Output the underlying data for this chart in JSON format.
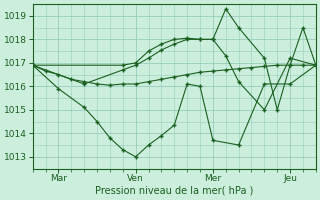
{
  "background_color": "#cceedd",
  "grid_color": "#99ccbb",
  "line_color": "#1a6020",
  "marker_color": "#1a6020",
  "xlabel": "Pression niveau de la mer( hPa )",
  "ylim": [
    1012.5,
    1019.5
  ],
  "yticks": [
    1013,
    1014,
    1015,
    1016,
    1017,
    1018,
    1019
  ],
  "xtick_labels": [
    "Mar",
    "Ven",
    "Mer",
    "Jeu"
  ],
  "xtick_positions": [
    24,
    96,
    168,
    240
  ],
  "xlim": [
    0,
    264
  ],
  "num_minor_x": 264,
  "series1_x": [
    0,
    12,
    24,
    36,
    48,
    60,
    72,
    84,
    96,
    108,
    120,
    132,
    144,
    156,
    168,
    180,
    192,
    204,
    216,
    228,
    240,
    252,
    264
  ],
  "series1_y": [
    1016.9,
    1016.65,
    1016.5,
    1016.3,
    1016.2,
    1016.1,
    1016.05,
    1016.1,
    1016.1,
    1016.2,
    1016.3,
    1016.4,
    1016.5,
    1016.6,
    1016.65,
    1016.7,
    1016.75,
    1016.8,
    1016.85,
    1016.9,
    1016.9,
    1016.9,
    1016.9
  ],
  "series2_x": [
    0,
    24,
    48,
    60,
    72,
    84,
    96,
    108,
    120,
    132,
    144,
    156,
    168,
    192,
    216,
    240,
    264
  ],
  "series2_y": [
    1016.9,
    1015.9,
    1015.1,
    1014.5,
    1013.8,
    1013.3,
    1013.0,
    1013.5,
    1013.9,
    1014.35,
    1016.1,
    1016.0,
    1013.7,
    1013.5,
    1016.1,
    1016.1,
    1016.9
  ],
  "series3_x": [
    0,
    48,
    84,
    96,
    108,
    120,
    132,
    144,
    156,
    168,
    180,
    192,
    216,
    240,
    264
  ],
  "series3_y": [
    1016.9,
    1016.1,
    1016.7,
    1016.9,
    1017.2,
    1017.55,
    1017.8,
    1018.0,
    1018.0,
    1018.0,
    1017.3,
    1016.2,
    1015.0,
    1017.2,
    1016.9
  ],
  "series4_x": [
    0,
    84,
    96,
    108,
    120,
    132,
    144,
    156,
    168,
    180,
    192,
    216,
    228,
    240,
    252,
    264
  ],
  "series4_y": [
    1016.9,
    1016.9,
    1017.0,
    1017.5,
    1017.8,
    1018.0,
    1018.05,
    1018.0,
    1018.0,
    1019.3,
    1018.5,
    1017.2,
    1015.0,
    1016.9,
    1018.5,
    1016.9
  ]
}
